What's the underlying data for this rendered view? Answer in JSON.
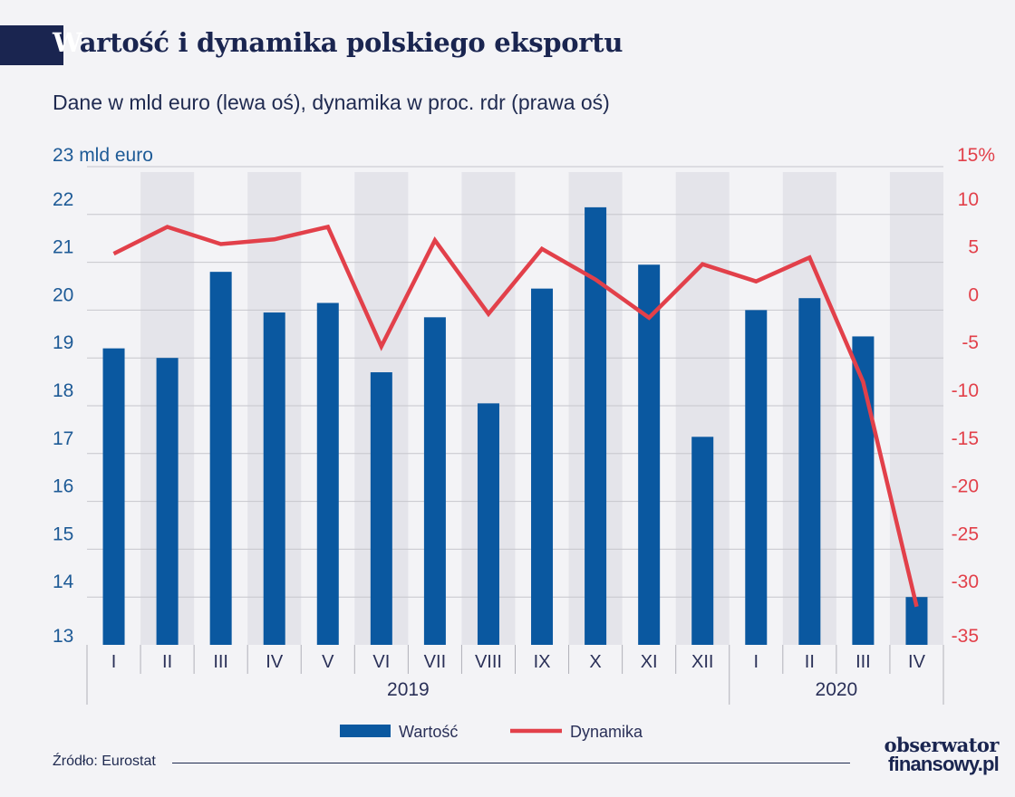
{
  "header": {
    "title_first": "W",
    "title_rest": "artość i dynamika polskiego eksportu",
    "subtitle": "Dane w mld euro (lewa oś), dynamika w proc. rdr (prawa oś)"
  },
  "footer": {
    "source": "Źródło: Eurostat",
    "logo_line1": "obserwator",
    "logo_line2": "finansowy.pl"
  },
  "colors": {
    "bar": "#0a58a0",
    "line": "#e2404a",
    "left_axis": "#1d5a96",
    "right_axis": "#e2404a",
    "shade": "#e4e4ea",
    "grid": "#c6c6cc"
  },
  "chart_data": {
    "type": "bar+line",
    "title": "Wartość i dynamika polskiego eksportu",
    "categories": [
      "I",
      "II",
      "III",
      "IV",
      "V",
      "VI",
      "VII",
      "VIII",
      "IX",
      "X",
      "XI",
      "XII",
      "I",
      "II",
      "III",
      "IV"
    ],
    "year_groups": [
      {
        "label": "2019",
        "count": 12
      },
      {
        "label": "2020",
        "count": 4
      }
    ],
    "left_axis": {
      "unit_label": "23 mld euro",
      "ylim": [
        13,
        23
      ],
      "ticks": [
        13,
        14,
        15,
        16,
        17,
        18,
        19,
        20,
        21,
        22
      ]
    },
    "right_axis": {
      "unit_label": "15%",
      "ylim": [
        -35,
        15
      ],
      "ticks": [
        {
          "value": 10,
          "label": "10"
        },
        {
          "value": 5,
          "label": "5"
        },
        {
          "value": 0,
          "label": "0"
        },
        {
          "value": -5,
          "label": "-5"
        },
        {
          "value": -10,
          "label": "-10"
        },
        {
          "value": -15,
          "label": "-15"
        },
        {
          "value": -20,
          "label": "-20"
        },
        {
          "value": -25,
          "label": "-25"
        },
        {
          "value": -30,
          "label": "-30"
        },
        {
          "value": -35,
          "label": "-35"
        }
      ]
    },
    "series": [
      {
        "name": "Wartość",
        "type": "bar",
        "axis": "left",
        "values": [
          19.2,
          19.0,
          20.8,
          19.95,
          20.15,
          18.7,
          19.85,
          18.05,
          20.45,
          22.15,
          20.95,
          17.35,
          20.0,
          20.25,
          19.45,
          14.0
        ]
      },
      {
        "name": "Dynamika",
        "type": "line",
        "axis": "right",
        "values": [
          5.9,
          8.7,
          6.9,
          7.4,
          8.7,
          -3.8,
          7.3,
          -0.4,
          6.4,
          3.2,
          -0.8,
          4.8,
          3.0,
          5.5,
          -7.5,
          -31.0
        ]
      }
    ],
    "legend": [
      {
        "name": "Wartość",
        "kind": "bar"
      },
      {
        "name": "Dynamika",
        "kind": "line"
      }
    ],
    "legend_position": "bottom"
  }
}
